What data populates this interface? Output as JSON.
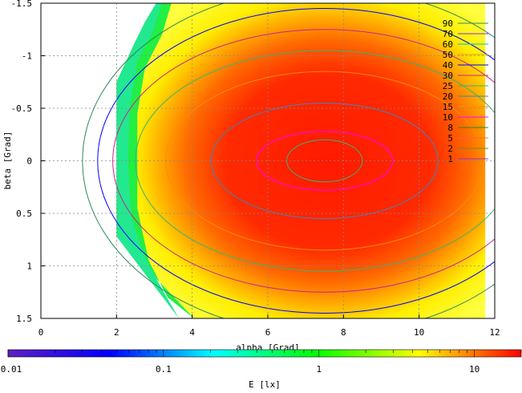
{
  "chart_data": {
    "type": "heatmap",
    "title": "",
    "xlabel": "alpha [Grad]",
    "ylabel": "beta [Grad]",
    "xlim": [
      0,
      12
    ],
    "ylim": [
      1.5,
      -1.5
    ],
    "x_ticks": [
      "0",
      "2",
      "4",
      "6",
      "8",
      "10",
      "12"
    ],
    "y_ticks": [
      "-1.5",
      "-1",
      "-0.5",
      "0",
      "0.5",
      "1",
      "1.5"
    ],
    "grid": true,
    "grid_style": "dotted",
    "colorbar": {
      "label": "E [lx]",
      "scale": "log",
      "range": [
        0.01,
        20
      ],
      "tick_labels": [
        "0.01",
        "0.1",
        "1",
        "10"
      ],
      "colors": [
        "#6020c0",
        "#0000ff",
        "#00ffff",
        "#00ff00",
        "#ffff00",
        "#ff0000"
      ]
    },
    "contour_legend": {
      "placement": "top-right",
      "levels": [
        "90",
        "70",
        "60",
        "50",
        "40",
        "30",
        "25",
        "20",
        "15",
        "10",
        "8",
        "5",
        "2",
        "1"
      ],
      "colors": [
        "#2e8b57",
        "#8a2be2",
        "#00bcd4",
        "#e6a000",
        "#0000ff",
        "#d02090",
        "#3cb371",
        "#4682b4",
        "#ff8c00",
        "#ff00ff",
        "#228b22",
        "#ff6347",
        "#6b8e23",
        "#9932cc"
      ]
    },
    "field": {
      "description_values": "illuminance E in lx, peak near alpha 7.5, beta 0",
      "peak_value": 20,
      "peak_alpha": 7.5,
      "peak_beta": 0.0
    }
  }
}
